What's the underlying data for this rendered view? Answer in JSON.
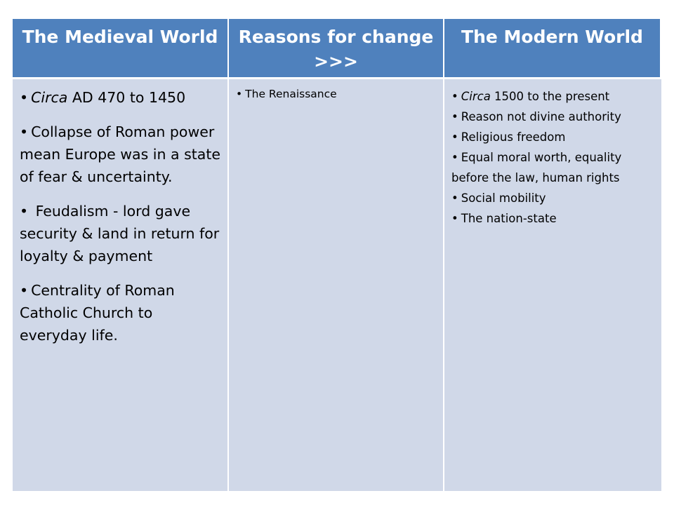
{
  "headers": [
    "The  Medieval World",
    "Reasons for change >>>",
    "The Modern World"
  ],
  "medieval": [
    {
      "italic": "Circa",
      "text": "  AD 470 to 1450"
    },
    {
      "italic": "",
      "text": "Collapse of Roman power mean Europe was in a state of fear & uncertainty."
    },
    {
      "italic": "",
      "text": " Feudalism - lord gave security & land in return for loyalty & payment"
    },
    {
      "italic": "",
      "text": "Centrality of Roman Catholic Church to everyday life."
    }
  ],
  "reasons": [
    {
      "italic": "",
      "text": "The Renaissance"
    }
  ],
  "modern": [
    {
      "italic": "Circa",
      "text": " 1500 to the present"
    },
    {
      "italic": "",
      "text": "Reason not divine authority"
    },
    {
      "italic": "",
      "text": "Religious freedom"
    },
    {
      "italic": "",
      "text": "Equal moral worth, equality before the law, human rights"
    },
    {
      "italic": "",
      "text": "Social mobility"
    },
    {
      "italic": "",
      "text": "The nation-state"
    }
  ],
  "bullet": "•",
  "colors": {
    "header": "#4f81bd",
    "body": "#d0d8e8"
  }
}
